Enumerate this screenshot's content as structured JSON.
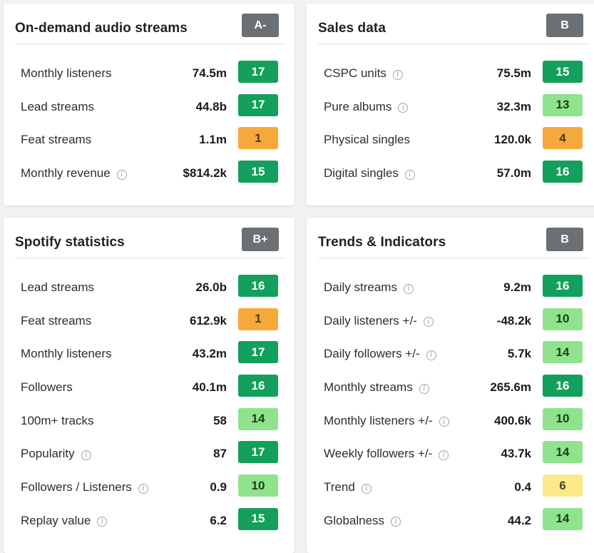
{
  "cards": [
    {
      "title": "On-demand audio streams",
      "grade": "A-",
      "rows": [
        {
          "label": "Monthly listeners",
          "info": false,
          "value": "74.5m",
          "score": "17",
          "level": "dark-green"
        },
        {
          "label": "Lead streams",
          "info": false,
          "value": "44.8b",
          "score": "17",
          "level": "dark-green"
        },
        {
          "label": "Feat streams",
          "info": false,
          "value": "1.1m",
          "score": "1",
          "level": "orange"
        },
        {
          "label": "Monthly revenue",
          "info": true,
          "value": "$814.2k",
          "score": "15",
          "level": "dark-green"
        }
      ]
    },
    {
      "title": "Sales data",
      "grade": "B",
      "rows": [
        {
          "label": "CSPC units",
          "info": true,
          "value": "75.5m",
          "score": "15",
          "level": "dark-green"
        },
        {
          "label": "Pure albums",
          "info": true,
          "value": "32.3m",
          "score": "13",
          "level": "light-green"
        },
        {
          "label": "Physical singles",
          "info": false,
          "value": "120.0k",
          "score": "4",
          "level": "orange"
        },
        {
          "label": "Digital singles",
          "info": true,
          "value": "57.0m",
          "score": "16",
          "level": "dark-green"
        }
      ]
    },
    {
      "title": "Spotify statistics",
      "grade": "B+",
      "rows": [
        {
          "label": "Lead streams",
          "info": false,
          "value": "26.0b",
          "score": "16",
          "level": "dark-green"
        },
        {
          "label": "Feat streams",
          "info": false,
          "value": "612.9k",
          "score": "1",
          "level": "orange"
        },
        {
          "label": "Monthly listeners",
          "info": false,
          "value": "43.2m",
          "score": "17",
          "level": "dark-green"
        },
        {
          "label": "Followers",
          "info": false,
          "value": "40.1m",
          "score": "16",
          "level": "dark-green"
        },
        {
          "label": "100m+ tracks",
          "info": false,
          "value": "58",
          "score": "14",
          "level": "light-green"
        },
        {
          "label": "Popularity",
          "info": true,
          "value": "87",
          "score": "17",
          "level": "dark-green"
        },
        {
          "label": "Followers / Listeners",
          "info": true,
          "value": "0.9",
          "score": "10",
          "level": "light-green"
        },
        {
          "label": "Replay value",
          "info": true,
          "value": "6.2",
          "score": "15",
          "level": "dark-green"
        }
      ]
    },
    {
      "title": "Trends & Indicators",
      "grade": "B",
      "rows": [
        {
          "label": "Daily streams",
          "info": true,
          "value": "9.2m",
          "score": "16",
          "level": "dark-green"
        },
        {
          "label": "Daily listeners +/-",
          "info": true,
          "value": "-48.2k",
          "score": "10",
          "level": "light-green"
        },
        {
          "label": "Daily followers +/-",
          "info": true,
          "value": "5.7k",
          "score": "14",
          "level": "light-green"
        },
        {
          "label": "Monthly streams",
          "info": true,
          "value": "265.6m",
          "score": "16",
          "level": "dark-green"
        },
        {
          "label": "Monthly listeners +/-",
          "info": true,
          "value": "400.6k",
          "score": "10",
          "level": "light-green"
        },
        {
          "label": "Weekly followers +/-",
          "info": true,
          "value": "43.7k",
          "score": "14",
          "level": "light-green"
        },
        {
          "label": "Trend",
          "info": true,
          "value": "0.4",
          "score": "6",
          "level": "yellow"
        },
        {
          "label": "Globalness",
          "info": true,
          "value": "44.2",
          "score": "14",
          "level": "light-green"
        }
      ]
    }
  ],
  "colors": {
    "dark-green": "#12a05c",
    "light-green": "#8fe38d",
    "orange": "#f6a93b",
    "yellow": "#fbe98a",
    "grade-badge": "#6b7075"
  },
  "icons": {
    "info": "info-icon"
  }
}
